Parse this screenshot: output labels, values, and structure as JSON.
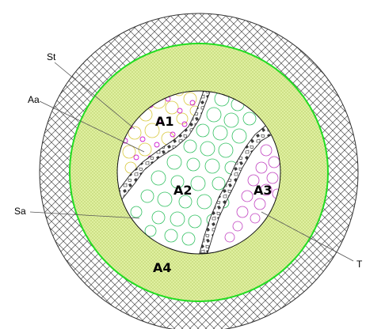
{
  "regions": {
    "a1": "A1",
    "a2": "A2",
    "a3": "A3",
    "a4": "A4"
  },
  "callouts": {
    "st": "St",
    "aa": "Aa",
    "sa": "Sa",
    "t": "T"
  },
  "colors": {
    "outer_hatch": "#4d4d4d",
    "ring_fill": "#dff0a0",
    "ring_dots": "#a4b84a",
    "boundary_ring": "#22dd22",
    "a1_circles": "#d8c83c",
    "a1_dots": "#d020d0",
    "a2_circles": "#30c060",
    "a3_circles": "#c040c0",
    "separator_fill": "#555555"
  }
}
